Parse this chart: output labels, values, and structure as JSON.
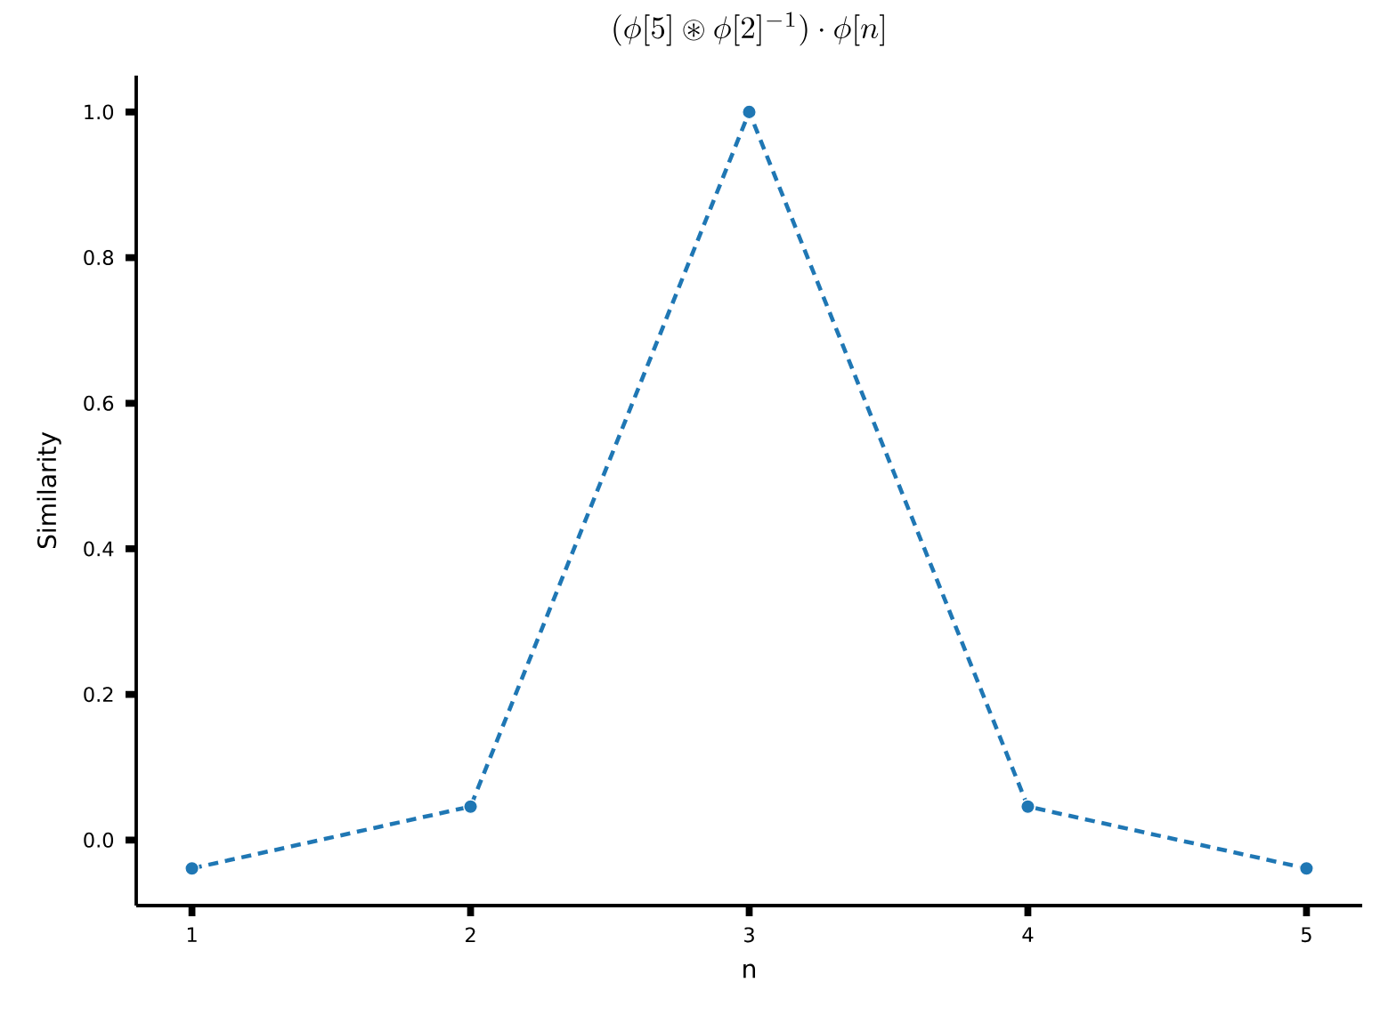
{
  "chart_data": {
    "type": "line",
    "title": "(\\phi[5] \\circledast \\phi[2]^{-1}) \\cdot \\phi[n]",
    "xlabel": "n",
    "ylabel": "Similarity",
    "x": [
      1,
      2,
      3,
      4,
      5
    ],
    "series": [
      {
        "color": "#1f77b4",
        "values": [
          -0.039,
          0.046,
          1.0,
          0.046,
          -0.039
        ]
      }
    ],
    "marker": "circle",
    "line_style": "dashed",
    "grid": false,
    "xlim": [
      0.8,
      5.2
    ],
    "ylim": [
      -0.09,
      1.05
    ],
    "xticks": [
      1,
      2,
      3,
      4,
      5
    ],
    "yticks": [
      {
        "value": 0,
        "label": "0.0"
      },
      {
        "value": 0.2,
        "label": "0.2"
      },
      {
        "value": 0.4,
        "label": "0.4"
      },
      {
        "value": 0.6,
        "label": "0.6"
      },
      {
        "value": 0.8,
        "label": "0.8"
      },
      {
        "value": 1.0,
        "label": "1.0"
      }
    ]
  }
}
